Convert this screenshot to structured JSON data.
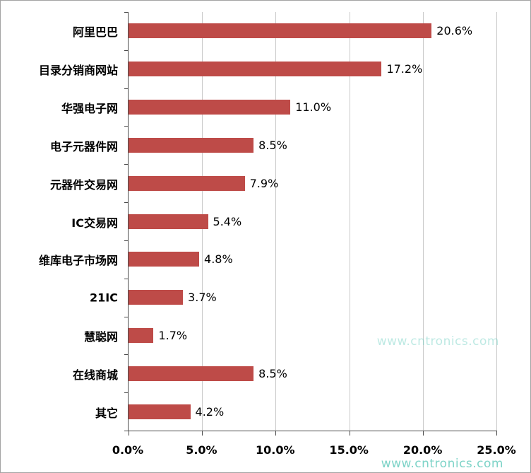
{
  "chart_data": {
    "type": "bar",
    "orientation": "horizontal",
    "categories": [
      "阿里巴巴",
      "目录分销商网站",
      "华强电子网",
      "电子元器件网",
      "元器件交易网",
      "IC交易网",
      "维库电子市场网",
      "21IC",
      "慧聪网",
      "在线商城",
      "其它"
    ],
    "values": [
      20.6,
      17.2,
      11.0,
      8.5,
      7.9,
      5.4,
      4.8,
      3.7,
      1.7,
      8.5,
      4.2
    ],
    "value_labels": [
      "20.6%",
      "17.2%",
      "11.0%",
      "8.5%",
      "7.9%",
      "5.4%",
      "4.8%",
      "3.7%",
      "1.7%",
      "8.5%",
      "4.2%"
    ],
    "x_ticks": [
      "0.0%",
      "5.0%",
      "10.0%",
      "15.0%",
      "20.0%",
      "25.0%"
    ],
    "x_tick_values": [
      0,
      5,
      10,
      15,
      20,
      25
    ],
    "xlim": [
      0,
      25
    ],
    "bar_color": "#be4b48",
    "gridline_color": "#c9c9c9",
    "grid": true,
    "legend": "none"
  },
  "watermark": {
    "text": "www.cntronics.com",
    "color": "#6fcfc2"
  }
}
